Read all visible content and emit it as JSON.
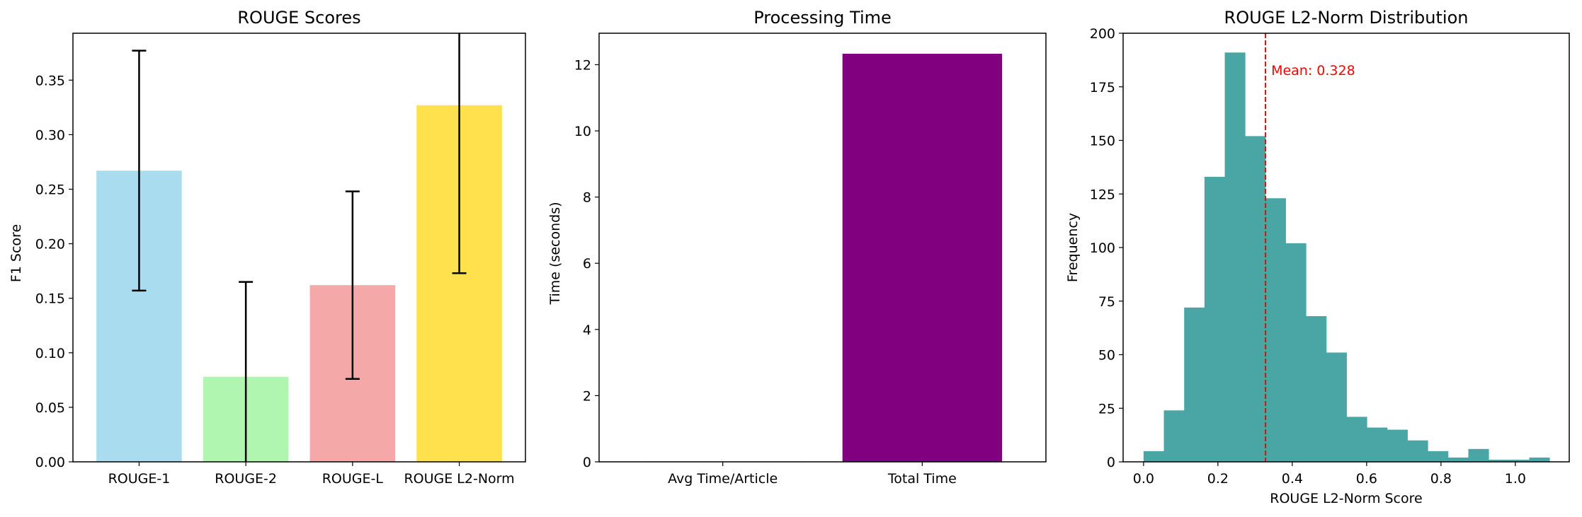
{
  "chart_data": [
    {
      "type": "bar",
      "title": "ROUGE Scores",
      "xlabel": "",
      "ylabel": "F1 Score",
      "categories": [
        "ROUGE-1",
        "ROUGE-2",
        "ROUGE-L",
        "ROUGE L2-Norm"
      ],
      "values": [
        0.267,
        0.078,
        0.162,
        0.327
      ],
      "error": [
        0.11,
        0.087,
        0.086,
        0.154
      ],
      "colors": [
        "#aadcef",
        "#b0f5b0",
        "#f4a8a8",
        "#ffe14e"
      ],
      "ylim": [
        0,
        0.393
      ],
      "yticks": [
        "0.00",
        "0.05",
        "0.10",
        "0.15",
        "0.20",
        "0.25",
        "0.30",
        "0.35"
      ],
      "grid": false
    },
    {
      "type": "bar",
      "title": "Processing Time",
      "xlabel": "",
      "ylabel": "Time (seconds)",
      "categories": [
        "Avg Time/Article",
        "Total Time"
      ],
      "values": [
        0.012,
        12.33
      ],
      "colors": [
        "#800080",
        "#800080"
      ],
      "ylim": [
        0,
        12.95
      ],
      "yticks": [
        "0",
        "2",
        "4",
        "6",
        "8",
        "10",
        "12"
      ],
      "grid": false
    },
    {
      "type": "bar",
      "subtype": "histogram",
      "title": "ROUGE L2-Norm Distribution",
      "xlabel": "ROUGE L2-Norm Score",
      "ylabel": "Frequency",
      "bin_start": 0.0,
      "bin_width": 0.0546,
      "values": [
        5,
        24,
        72,
        133,
        191,
        152,
        123,
        102,
        68,
        51,
        21,
        16,
        15,
        10,
        5,
        2,
        6,
        1,
        1,
        2
      ],
      "color": "#4aa5a5",
      "xlim": [
        -0.055,
        1.145
      ],
      "ylim": [
        0,
        200
      ],
      "xticks": [
        "0.0",
        "0.2",
        "0.4",
        "0.6",
        "0.8",
        "1.0"
      ],
      "yticks": [
        "0",
        "25",
        "50",
        "75",
        "100",
        "125",
        "150",
        "175",
        "200"
      ],
      "mean": 0.328,
      "mean_label": "Mean: 0.328",
      "mean_color": "#ff0000",
      "grid": false
    }
  ]
}
